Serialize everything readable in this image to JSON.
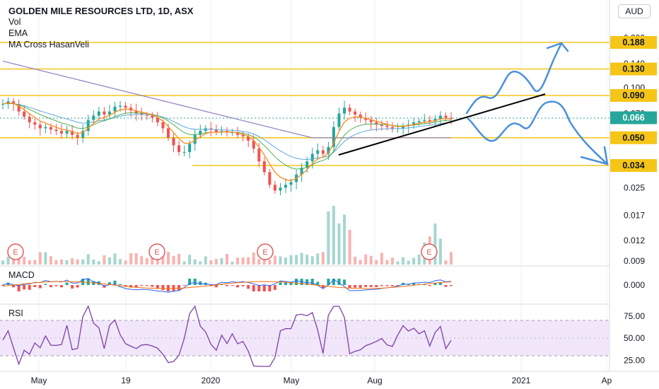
{
  "header": {
    "title": "GOLDEN MILE RESOURCES LTD, 1D, ASX",
    "indicators": [
      "Vol",
      "EMA",
      "MA Cross HasanVeli"
    ],
    "currency": "AUD"
  },
  "colors": {
    "level_line": "#f5c518",
    "trend_line": "#000000",
    "drawing": "#4a90d9",
    "last_price": "#26a69a",
    "candle_up": "#26a69a",
    "candle_down": "#ef5350",
    "rsi_line": "#7e3fa8",
    "rsi_band": "#f1e6fa",
    "macd_line": "#2962ff",
    "signal_line": "#ff6d00"
  },
  "chart_data": [
    {
      "type": "candlestick",
      "pane": "price",
      "y_scale": "log",
      "y_ticks": [
        "0.200",
        "0.140",
        "0.100",
        "0.070",
        "0.025",
        "0.017",
        "0.012",
        "0.009"
      ],
      "price_levels": [
        {
          "label": "0.188",
          "value": 0.188
        },
        {
          "label": "0.130",
          "value": 0.13
        },
        {
          "label": "0.090",
          "value": 0.09
        },
        {
          "label": "0.050",
          "value": 0.05
        },
        {
          "label": "0.034",
          "value": 0.034
        }
      ],
      "last_price": {
        "label": "0.066",
        "value": 0.066
      },
      "x_ticks": [
        "May",
        "19",
        "2020",
        "May",
        "Aug",
        "2021",
        "Ap"
      ],
      "earnings_markers": [
        "E",
        "E",
        "E",
        "E"
      ],
      "close_approx": [
        0.08,
        0.083,
        0.08,
        0.072,
        0.067,
        0.062,
        0.06,
        0.057,
        0.058,
        0.056,
        0.055,
        0.053,
        0.055,
        0.052,
        0.05,
        0.055,
        0.064,
        0.068,
        0.072,
        0.069,
        0.072,
        0.077,
        0.078,
        0.076,
        0.073,
        0.07,
        0.069,
        0.068,
        0.066,
        0.062,
        0.057,
        0.05,
        0.045,
        0.041,
        0.041,
        0.046,
        0.052,
        0.055,
        0.057,
        0.056,
        0.054,
        0.055,
        0.054,
        0.054,
        0.052,
        0.051,
        0.048,
        0.043,
        0.036,
        0.031,
        0.026,
        0.024,
        0.025,
        0.026,
        0.027,
        0.03,
        0.033,
        0.036,
        0.04,
        0.042,
        0.04,
        0.044,
        0.058,
        0.07,
        0.076,
        0.072,
        0.069,
        0.066,
        0.064,
        0.062,
        0.06,
        0.059,
        0.058,
        0.057,
        0.057,
        0.059,
        0.06,
        0.062,
        0.063,
        0.064,
        0.063,
        0.065,
        0.068,
        0.066,
        0.065
      ]
    },
    {
      "type": "line",
      "pane": "macd",
      "title": "MACD",
      "y_ticks": [
        "0.000"
      ]
    },
    {
      "type": "line",
      "pane": "rsi",
      "title": "RSI",
      "y_ticks": [
        "75.00",
        "50.00",
        "25.00"
      ],
      "band": [
        30,
        70
      ]
    }
  ]
}
